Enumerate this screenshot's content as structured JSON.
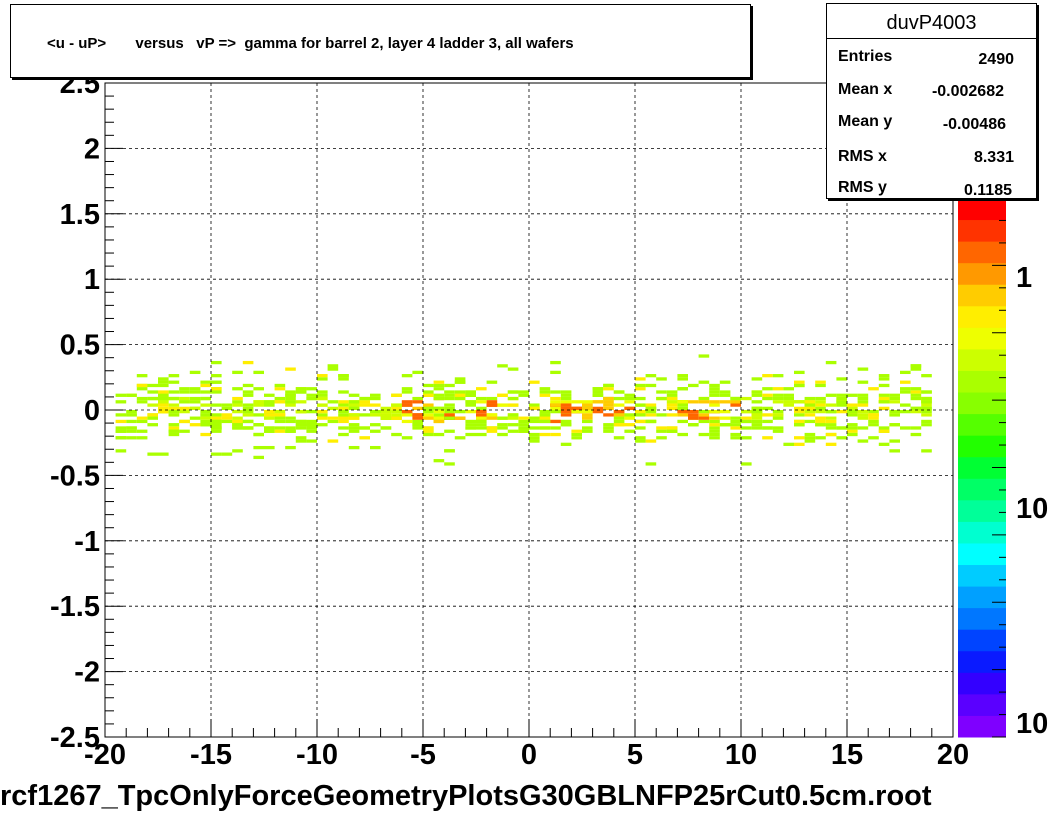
{
  "header": {
    "title": "<u - uP>       versus   vP =>  gamma for barrel 2, layer 4 ladder 3, all wafers"
  },
  "stats": {
    "name": "duvP4003",
    "rows": [
      {
        "label": "Entries",
        "value": "2490"
      },
      {
        "label": "Mean x",
        "value": "-0.002682"
      },
      {
        "label": "Mean y",
        "value": "-0.00486"
      },
      {
        "label": "RMS x",
        "value": "8.331"
      },
      {
        "label": "RMS y",
        "value": "0.1185"
      }
    ]
  },
  "footer": {
    "filename": "rcf1267_TpcOnlyForceGeometryPlotsG30GBLNFP25rCut0.5cm.root"
  },
  "colors": {
    "palette": [
      "#7f00ff",
      "#5a00ff",
      "#3300ff",
      "#0a1aff",
      "#0044ff",
      "#0077ff",
      "#00a0ff",
      "#00ccff",
      "#00ffff",
      "#00ffd0",
      "#00ff99",
      "#00ff66",
      "#00ff33",
      "#22ff00",
      "#55ff00",
      "#88ff00",
      "#aaff00",
      "#ccff00",
      "#eeff00",
      "#ffee00",
      "#ffcc00",
      "#ff9900",
      "#ff6600",
      "#ff3300",
      "#ff0000"
    ],
    "frame": "#000000",
    "grid": "#000000"
  },
  "chart_data": {
    "type": "heatmap",
    "title": "<u - uP>       versus   vP =>  gamma for barrel 2, layer 4 ladder 3, all wafers",
    "xlim": [
      -20,
      20
    ],
    "ylim": [
      -2.5,
      2.5
    ],
    "x_ticks": [
      "-20",
      "-15",
      "-10",
      "-5",
      "0",
      "5",
      "10",
      "15",
      "20"
    ],
    "y_ticks": [
      "-2.5",
      "-2",
      "-1.5",
      "-1",
      "-0.5",
      "0",
      "0.5",
      "1",
      "1.5",
      "2",
      "2.5"
    ],
    "grid": true,
    "colorbar": {
      "scale": "log",
      "tick_labels": [
        "1",
        "10",
        "10"
      ]
    },
    "distribution": {
      "x_extent": [
        -19.5,
        19.0
      ],
      "y_center": 0.0,
      "y_spread": 0.12,
      "y_outlier_extent": [
        -0.45,
        0.45
      ],
      "peak_regions_x": [
        [
          -6,
          -1
        ],
        [
          1,
          5
        ],
        [
          7,
          10
        ]
      ]
    }
  }
}
